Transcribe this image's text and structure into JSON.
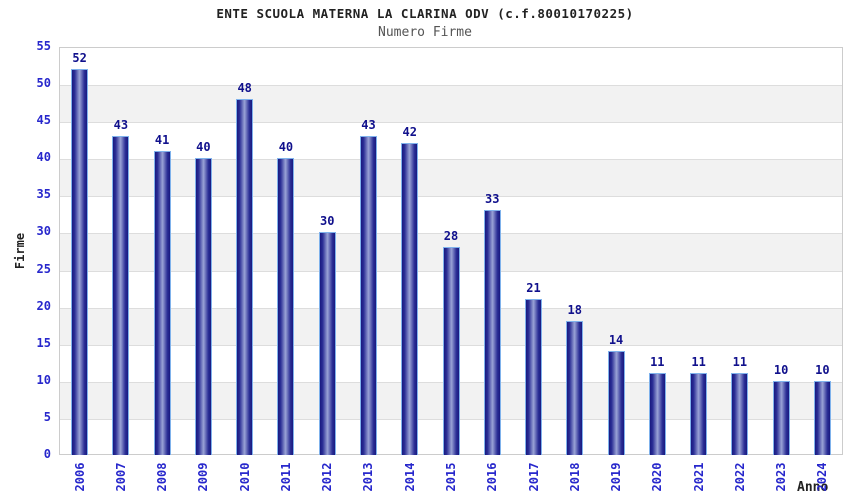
{
  "chart_data": {
    "type": "bar",
    "title": "ENTE SCUOLA MATERNA LA CLARINA ODV (c.f.80010170225)",
    "subtitle": "Numero Firme",
    "xlabel": "Anno",
    "ylabel": "Firme",
    "categories": [
      "2006",
      "2007",
      "2008",
      "2009",
      "2010",
      "2011",
      "2012",
      "2013",
      "2014",
      "2015",
      "2016",
      "2017",
      "2018",
      "2019",
      "2020",
      "2021",
      "2022",
      "2023",
      "2024"
    ],
    "values": [
      52,
      43,
      41,
      40,
      48,
      40,
      30,
      43,
      42,
      28,
      33,
      21,
      18,
      14,
      11,
      11,
      11,
      10,
      10
    ],
    "ylim": [
      0,
      55
    ],
    "ytick_step": 5,
    "yticks": [
      0,
      5,
      10,
      15,
      20,
      25,
      30,
      35,
      40,
      45,
      50,
      55
    ],
    "grid": "horizontal gridlines with alternating white/gray bands",
    "legend_position": "none",
    "bar_value_labels_shown": true,
    "colors": {
      "bar_dark": "#191980",
      "bar_mid": "#2b2f96",
      "bar_light": "#9aa3d6",
      "bar_outline": "#7fb2ec",
      "tick_label": "#2727cc",
      "value_label": "#10108c",
      "title": "#222222",
      "subtitle": "#555555",
      "band": "#f2f2f2",
      "gridline": "#dddddd",
      "plot_border": "#cccccc",
      "axis_title": "#222222"
    }
  }
}
